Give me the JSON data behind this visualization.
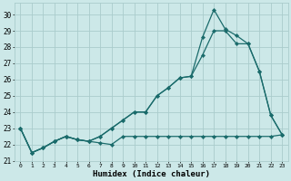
{
  "xlabel": "Humidex (Indice chaleur)",
  "xlim": [
    -0.5,
    23.5
  ],
  "ylim": [
    21,
    30.7
  ],
  "yticks": [
    21,
    22,
    23,
    24,
    25,
    26,
    27,
    28,
    29,
    30
  ],
  "xticks": [
    0,
    1,
    2,
    3,
    4,
    5,
    6,
    7,
    8,
    9,
    10,
    11,
    12,
    13,
    14,
    15,
    16,
    17,
    18,
    19,
    20,
    21,
    22,
    23
  ],
  "bg_color": "#cce8e8",
  "grid_color": "#aacccc",
  "line_color": "#1a6b6b",
  "series1_x": [
    0,
    1,
    2,
    3,
    4,
    5,
    6,
    7,
    8,
    9,
    10,
    11,
    12,
    13,
    14,
    15,
    16,
    17,
    18,
    19,
    20,
    21,
    22,
    23
  ],
  "series1_y": [
    23,
    21.5,
    21.8,
    22.2,
    22.5,
    22.3,
    22.2,
    22.1,
    22.0,
    22.5,
    22.5,
    22.5,
    22.5,
    22.5,
    22.5,
    22.5,
    22.5,
    22.5,
    22.5,
    22.5,
    22.5,
    22.5,
    22.5,
    22.6
  ],
  "series2_x": [
    0,
    1,
    2,
    3,
    4,
    5,
    6,
    7,
    8,
    9,
    10,
    11,
    12,
    13,
    14,
    15,
    16,
    17,
    18,
    19,
    20,
    21,
    22,
    23
  ],
  "series2_y": [
    23,
    21.5,
    21.8,
    22.2,
    22.5,
    22.3,
    22.2,
    22.5,
    23.0,
    23.5,
    24.0,
    24.0,
    25.0,
    25.5,
    26.1,
    26.2,
    27.5,
    29.0,
    29.0,
    28.2,
    28.2,
    26.5,
    23.8,
    22.6
  ],
  "series3_x": [
    0,
    1,
    2,
    3,
    4,
    5,
    6,
    7,
    8,
    9,
    10,
    11,
    12,
    13,
    14,
    15,
    16,
    17,
    18,
    19,
    20,
    21,
    22,
    23
  ],
  "series3_y": [
    23,
    21.5,
    21.8,
    22.2,
    22.5,
    22.3,
    22.2,
    22.5,
    23.0,
    23.5,
    24.0,
    24.0,
    25.0,
    25.5,
    26.1,
    26.2,
    28.6,
    30.3,
    29.1,
    28.7,
    28.2,
    26.5,
    23.8,
    22.6
  ]
}
